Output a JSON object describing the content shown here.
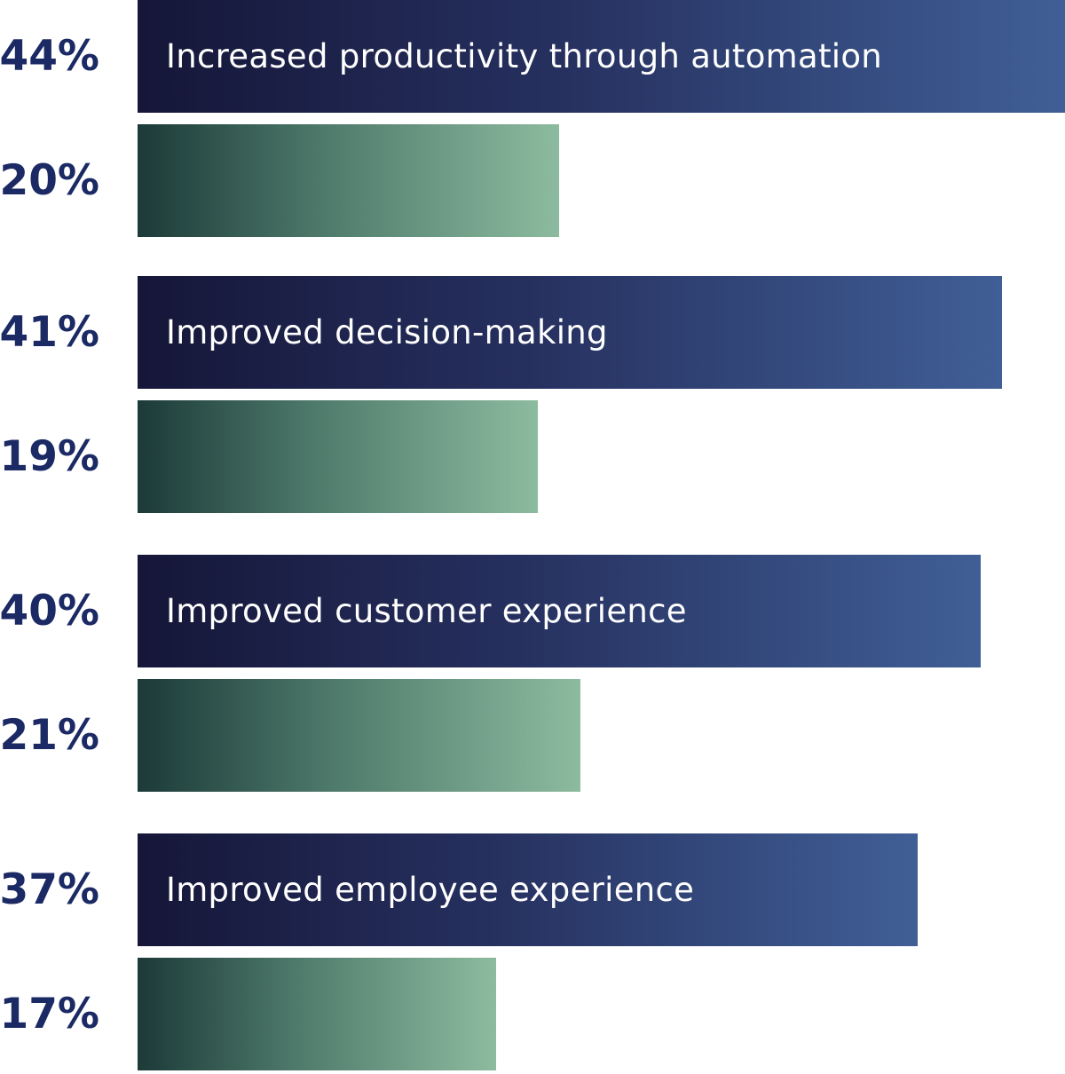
{
  "chart_data": {
    "type": "bar",
    "orientation": "horizontal",
    "categories": [
      "Increased productivity through automation",
      "Improved decision-making",
      "Improved customer experience",
      "Improved employee experience"
    ],
    "series": [
      {
        "values": [
          44,
          41,
          40,
          37
        ],
        "color": "#26305f"
      },
      {
        "values": [
          20,
          19,
          21,
          17
        ],
        "color": "#5f8f7e"
      }
    ],
    "value_labels": [
      [
        "44%",
        "41%",
        "40%",
        "37%"
      ],
      [
        "20%",
        "19%",
        "21%",
        "17%"
      ]
    ],
    "xlim": [
      0,
      44
    ],
    "grid": false,
    "legend": "none"
  }
}
